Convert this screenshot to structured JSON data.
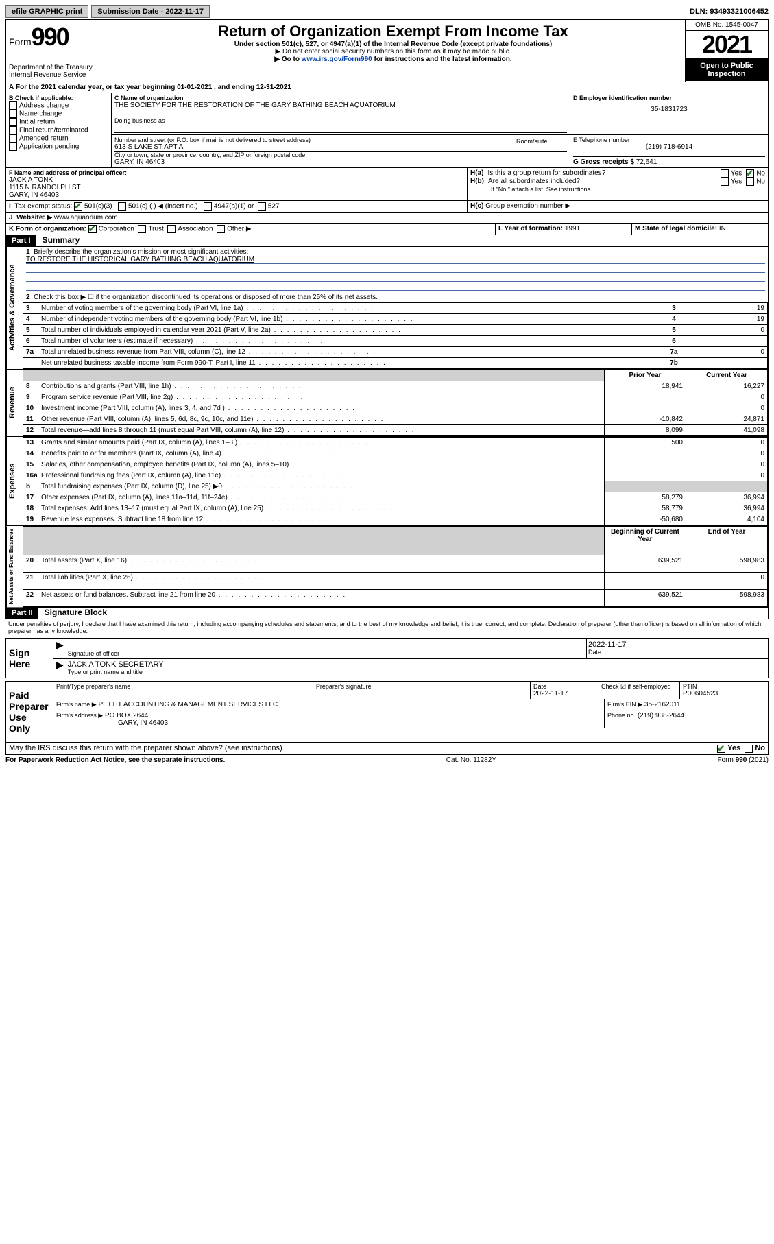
{
  "top": {
    "efile": "efile GRAPHIC print",
    "submission": "Submission Date - 2022-11-17",
    "dln": "DLN: 93493321006452"
  },
  "header": {
    "form_prefix": "Form",
    "form_num": "990",
    "dept": "Department of the Treasury",
    "irs": "Internal Revenue Service",
    "title": "Return of Organization Exempt From Income Tax",
    "sub": "Under section 501(c), 527, or 4947(a)(1) of the Internal Revenue Code (except private foundations)",
    "note1": "▶ Do not enter social security numbers on this form as it may be made public.",
    "note2_pre": "▶ Go to ",
    "note2_link": "www.irs.gov/Form990",
    "note2_post": " for instructions and the latest information.",
    "omb": "OMB No. 1545-0047",
    "year": "2021",
    "inspection": "Open to Public Inspection"
  },
  "A": {
    "text": "For the 2021 calendar year, or tax year beginning 01-01-2021   , and ending 12-31-2021"
  },
  "B": {
    "label": "B Check if applicable:",
    "items": [
      "Address change",
      "Name change",
      "Initial return",
      "Final return/terminated",
      "Amended return",
      "Application pending"
    ]
  },
  "C": {
    "name_label": "C Name of organization",
    "name": "THE SOCIETY FOR THE RESTORATION OF THE GARY BATHING BEACH AQUATORIUM",
    "dba_label": "Doing business as",
    "street_label": "Number and street (or P.O. box if mail is not delivered to street address)",
    "room_label": "Room/suite",
    "street": "613 S LAKE ST APT A",
    "city_label": "City or town, state or province, country, and ZIP or foreign postal code",
    "city": "GARY, IN  46403"
  },
  "D": {
    "label": "D Employer identification number",
    "value": "35-1831723"
  },
  "E": {
    "label": "E Telephone number",
    "value": "(219) 718-6914"
  },
  "G": {
    "label": "G Gross receipts $",
    "value": "72,641"
  },
  "F": {
    "label": "F Name and address of principal officer:",
    "name": "JACK A TONK",
    "street": "1115 N RANDOLPH ST",
    "city": "GARY, IN  46403"
  },
  "H": {
    "a": "Is this a group return for subordinates?",
    "b": "Are all subordinates included?",
    "b_note": "If \"No,\" attach a list. See instructions.",
    "c": "Group exemption number ▶",
    "yes": "Yes",
    "no": "No"
  },
  "I": {
    "label": "Tax-exempt status:",
    "c3": "501(c)(3)",
    "c_other": "501(c) (   ) ◀ (insert no.)",
    "a1": "4947(a)(1) or",
    "s527": "527"
  },
  "J": {
    "label": "Website: ▶",
    "value": "www.aquaorium.com"
  },
  "K": {
    "label": "K Form of organization:",
    "opts": [
      "Corporation",
      "Trust",
      "Association",
      "Other ▶"
    ]
  },
  "L": {
    "label": "L Year of formation:",
    "value": "1991"
  },
  "M": {
    "label": "M State of legal domicile:",
    "value": "IN"
  },
  "part1": {
    "header": "Part I",
    "title": "Summary",
    "line1": "Briefly describe the organization's mission or most significant activities:",
    "mission": "TO RESTORE THE HISTORICAL GARY BATHING BEACH AQUATORIUM",
    "line2": "Check this box ▶ ☐  if the organization discontinued its operations or disposed of more than 25% of its net assets.",
    "rows_gov": [
      {
        "n": "3",
        "t": "Number of voting members of the governing body (Part VI, line 1a)",
        "rn": "3",
        "v": "19"
      },
      {
        "n": "4",
        "t": "Number of independent voting members of the governing body (Part VI, line 1b)",
        "rn": "4",
        "v": "19"
      },
      {
        "n": "5",
        "t": "Total number of individuals employed in calendar year 2021 (Part V, line 2a)",
        "rn": "5",
        "v": "0"
      },
      {
        "n": "6",
        "t": "Total number of volunteers (estimate if necessary)",
        "rn": "6",
        "v": ""
      },
      {
        "n": "7a",
        "t": "Total unrelated business revenue from Part VIII, column (C), line 12",
        "rn": "7a",
        "v": "0"
      },
      {
        "n": "",
        "t": "Net unrelated business taxable income from Form 990-T, Part I, line 11",
        "rn": "7b",
        "v": ""
      }
    ],
    "col_headers": {
      "prior": "Prior Year",
      "current": "Current Year"
    },
    "rows_rev": [
      {
        "n": "8",
        "t": "Contributions and grants (Part VIII, line 1h)",
        "p": "18,941",
        "c": "16,227"
      },
      {
        "n": "9",
        "t": "Program service revenue (Part VIII, line 2g)",
        "p": "",
        "c": "0"
      },
      {
        "n": "10",
        "t": "Investment income (Part VIII, column (A), lines 3, 4, and 7d )",
        "p": "",
        "c": "0"
      },
      {
        "n": "11",
        "t": "Other revenue (Part VIII, column (A), lines 5, 6d, 8c, 9c, 10c, and 11e)",
        "p": "-10,842",
        "c": "24,871"
      },
      {
        "n": "12",
        "t": "Total revenue—add lines 8 through 11 (must equal Part VIII, column (A), line 12)",
        "p": "8,099",
        "c": "41,098"
      }
    ],
    "rows_exp": [
      {
        "n": "13",
        "t": "Grants and similar amounts paid (Part IX, column (A), lines 1–3 )",
        "p": "500",
        "c": "0"
      },
      {
        "n": "14",
        "t": "Benefits paid to or for members (Part IX, column (A), line 4)",
        "p": "",
        "c": "0"
      },
      {
        "n": "15",
        "t": "Salaries, other compensation, employee benefits (Part IX, column (A), lines 5–10)",
        "p": "",
        "c": "0"
      },
      {
        "n": "16a",
        "t": "Professional fundraising fees (Part IX, column (A), line 11e)",
        "p": "",
        "c": "0"
      },
      {
        "n": "b",
        "t": "Total fundraising expenses (Part IX, column (D), line 25) ▶0",
        "p": "shade",
        "c": "shade"
      },
      {
        "n": "17",
        "t": "Other expenses (Part IX, column (A), lines 11a–11d, 11f–24e)",
        "p": "58,279",
        "c": "36,994"
      },
      {
        "n": "18",
        "t": "Total expenses. Add lines 13–17 (must equal Part IX, column (A), line 25)",
        "p": "58,779",
        "c": "36,994"
      },
      {
        "n": "19",
        "t": "Revenue less expenses. Subtract line 18 from line 12",
        "p": "-50,680",
        "c": "4,104"
      }
    ],
    "col_headers2": {
      "begin": "Beginning of Current Year",
      "end": "End of Year"
    },
    "rows_net": [
      {
        "n": "20",
        "t": "Total assets (Part X, line 16)",
        "p": "639,521",
        "c": "598,983"
      },
      {
        "n": "21",
        "t": "Total liabilities (Part X, line 26)",
        "p": "",
        "c": "0"
      },
      {
        "n": "22",
        "t": "Net assets or fund balances. Subtract line 21 from line 20",
        "p": "639,521",
        "c": "598,983"
      }
    ],
    "side": {
      "gov": "Activities & Governance",
      "rev": "Revenue",
      "exp": "Expenses",
      "net": "Net Assets or Fund Balances"
    }
  },
  "part2": {
    "header": "Part II",
    "title": "Signature Block",
    "declaration": "Under penalties of perjury, I declare that I have examined this return, including accompanying schedules and statements, and to the best of my knowledge and belief, it is true, correct, and complete. Declaration of preparer (other than officer) is based on all information of which preparer has any knowledge.",
    "sign_here": "Sign Here",
    "sig_officer": "Signature of officer",
    "sig_date_label": "Date",
    "sig_date": "2022-11-17",
    "officer_name": "JACK A TONK  SECRETARY",
    "officer_label": "Type or print name and title",
    "paid": "Paid Preparer Use Only",
    "prep_name_label": "Print/Type preparer's name",
    "prep_sig_label": "Preparer's signature",
    "prep_date_label": "Date",
    "prep_date": "2022-11-17",
    "check_self": "Check ☑ if self-employed",
    "ptin_label": "PTIN",
    "ptin": "P00604523",
    "firm_name_label": "Firm's name    ▶",
    "firm_name": "PETTIT ACCOUNTING & MANAGEMENT SERVICES LLC",
    "firm_ein_label": "Firm's EIN ▶",
    "firm_ein": "35-2162011",
    "firm_addr_label": "Firm's address ▶",
    "firm_addr": "PO BOX 2644",
    "firm_city": "GARY, IN  46403",
    "firm_phone_label": "Phone no.",
    "firm_phone": "(219) 938-2644",
    "discuss": "May the IRS discuss this return with the preparer shown above? (see instructions)"
  },
  "footer": {
    "left": "For Paperwork Reduction Act Notice, see the separate instructions.",
    "mid": "Cat. No. 11282Y",
    "right": "Form 990 (2021)"
  }
}
